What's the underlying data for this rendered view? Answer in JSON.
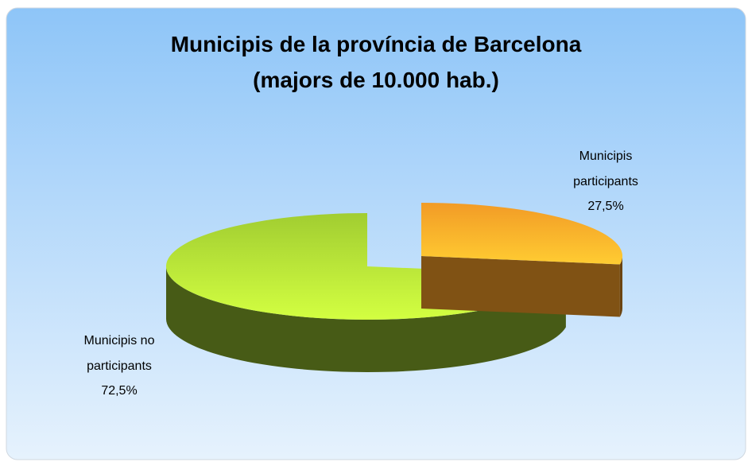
{
  "chart_data": {
    "type": "pie",
    "title": "Municipis de la província de Barcelona",
    "subtitle": "(majors de 10.000 hab.)",
    "categories": [
      "Municipis participants",
      "Municipis no participants"
    ],
    "values": [
      27.5,
      72.5
    ],
    "value_labels": [
      "27,5%",
      "72,5%"
    ],
    "colors": [
      "#ffa328",
      "#a9d834"
    ]
  }
}
